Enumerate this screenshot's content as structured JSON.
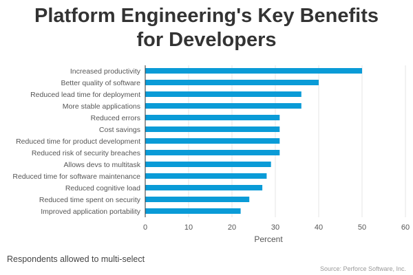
{
  "title_line1": "Platform Engineering's Key Benefits",
  "title_line2": "for Developers",
  "footnote": "Respondents allowed to multi-select",
  "source": "Source: Perforce Software, Inc.",
  "colors": {
    "bar": "#0a9bd7",
    "grid": "#e6e6e6",
    "axis": "#333333",
    "text": "#555555"
  },
  "chart_data": {
    "type": "bar",
    "orientation": "horizontal",
    "categories": [
      "Increased productivity",
      "Better quality of software",
      "Reduced lead time for deployment",
      "More stable applications",
      "Reduced errors",
      "Cost savings",
      "Reduced time for product development",
      "Reduced risk of security breaches",
      "Allows devs to multitask",
      "Reduced time for software maintenance",
      "Reduced cognitive load",
      "Reduced time spent on security",
      "Improved application portability"
    ],
    "values": [
      50,
      40,
      36,
      36,
      31,
      31,
      31,
      31,
      29,
      28,
      27,
      24,
      22
    ],
    "xlabel": "Percent",
    "ylabel": "",
    "xlim": [
      0,
      60
    ],
    "xticks": [
      0,
      10,
      20,
      30,
      40,
      50,
      60
    ],
    "grid": true,
    "legend": "none"
  }
}
